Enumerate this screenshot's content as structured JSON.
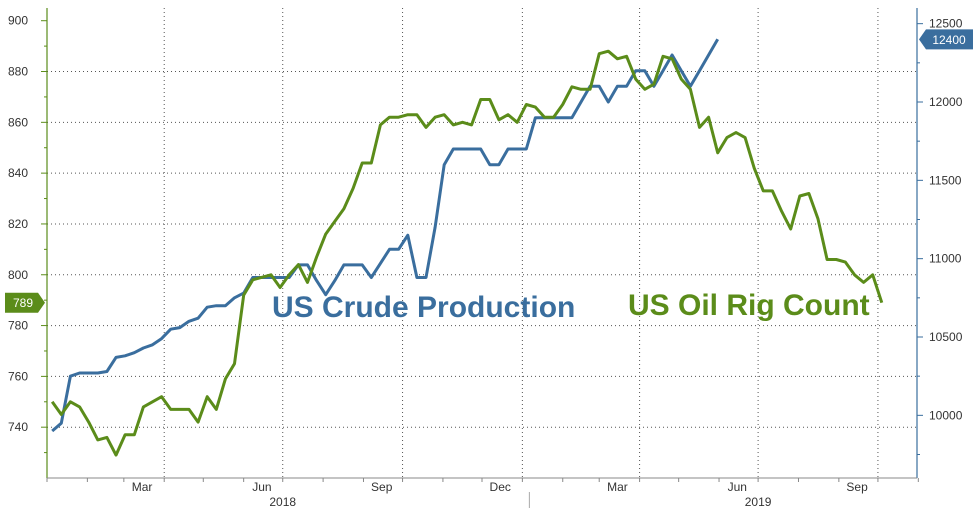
{
  "chart_data": {
    "type": "line",
    "x_axis": {
      "month_labels": [
        "Mar",
        "Jun",
        "Sep",
        "Dec",
        "Mar",
        "Jun",
        "Sep"
      ],
      "year_labels": [
        "2018",
        "2019"
      ],
      "range": [
        "2018-01-01",
        "2019-10-31"
      ]
    },
    "left_axis": {
      "ylim": [
        720,
        905
      ],
      "ticks": [
        740,
        760,
        780,
        800,
        820,
        840,
        860,
        880,
        900
      ]
    },
    "right_axis": {
      "ylim": [
        9600,
        12600
      ],
      "ticks": [
        10000,
        10500,
        11000,
        11500,
        12000,
        12500
      ]
    },
    "grid": "dotted",
    "series": [
      {
        "name": "US Crude Production",
        "axis": "right",
        "color": "#3a6e9e",
        "end_label": "12400",
        "points": [
          [
            "2018-01-05",
            9900
          ],
          [
            "2018-01-12",
            9950
          ],
          [
            "2018-01-19",
            10250
          ],
          [
            "2018-01-26",
            10270
          ],
          [
            "2018-02-02",
            10270
          ],
          [
            "2018-02-09",
            10270
          ],
          [
            "2018-02-16",
            10280
          ],
          [
            "2018-02-23",
            10370
          ],
          [
            "2018-03-02",
            10380
          ],
          [
            "2018-03-09",
            10400
          ],
          [
            "2018-03-16",
            10430
          ],
          [
            "2018-03-23",
            10450
          ],
          [
            "2018-03-30",
            10490
          ],
          [
            "2018-04-06",
            10550
          ],
          [
            "2018-04-13",
            10560
          ],
          [
            "2018-04-20",
            10600
          ],
          [
            "2018-04-27",
            10620
          ],
          [
            "2018-05-04",
            10690
          ],
          [
            "2018-05-11",
            10700
          ],
          [
            "2018-05-18",
            10700
          ],
          [
            "2018-05-25",
            10750
          ],
          [
            "2018-06-01",
            10780
          ],
          [
            "2018-06-08",
            10880
          ],
          [
            "2018-06-15",
            10880
          ],
          [
            "2018-06-22",
            10880
          ],
          [
            "2018-06-29",
            10880
          ],
          [
            "2018-07-06",
            10880
          ],
          [
            "2018-07-13",
            10960
          ],
          [
            "2018-07-20",
            10960
          ],
          [
            "2018-07-27",
            10860
          ],
          [
            "2018-08-03",
            10770
          ],
          [
            "2018-08-10",
            10860
          ],
          [
            "2018-08-17",
            10960
          ],
          [
            "2018-08-24",
            10960
          ],
          [
            "2018-08-31",
            10960
          ],
          [
            "2018-09-07",
            10880
          ],
          [
            "2018-09-14",
            10970
          ],
          [
            "2018-09-21",
            11060
          ],
          [
            "2018-09-28",
            11060
          ],
          [
            "2018-10-05",
            11150
          ],
          [
            "2018-10-12",
            10880
          ],
          [
            "2018-10-19",
            10880
          ],
          [
            "2018-10-26",
            11200
          ],
          [
            "2018-11-02",
            11600
          ],
          [
            "2018-11-09",
            11700
          ],
          [
            "2018-11-16",
            11700
          ],
          [
            "2018-11-23",
            11700
          ],
          [
            "2018-11-30",
            11700
          ],
          [
            "2018-12-07",
            11600
          ],
          [
            "2018-12-14",
            11600
          ],
          [
            "2018-12-21",
            11700
          ],
          [
            "2018-12-28",
            11700
          ],
          [
            "2019-01-04",
            11700
          ],
          [
            "2019-01-11",
            11900
          ],
          [
            "2019-01-18",
            11900
          ],
          [
            "2019-01-25",
            11900
          ],
          [
            "2019-02-01",
            11900
          ],
          [
            "2019-02-08",
            11900
          ],
          [
            "2019-02-15",
            12000
          ],
          [
            "2019-02-22",
            12100
          ],
          [
            "2019-03-01",
            12100
          ],
          [
            "2019-03-08",
            12000
          ],
          [
            "2019-03-15",
            12100
          ],
          [
            "2019-03-22",
            12100
          ],
          [
            "2019-03-29",
            12200
          ],
          [
            "2019-04-05",
            12200
          ],
          [
            "2019-04-12",
            12100
          ],
          [
            "2019-04-19",
            12200
          ],
          [
            "2019-04-26",
            12300
          ],
          [
            "2019-05-03",
            12200
          ],
          [
            "2019-05-10",
            12100
          ],
          [
            "2019-05-17",
            12200
          ],
          [
            "2019-05-24",
            12300
          ],
          [
            "2019-05-31",
            12400
          ]
        ]
      },
      {
        "name": "US Oil Rig Count",
        "axis": "left",
        "color": "#5b8c1a",
        "end_label": "789",
        "points": [
          [
            "2018-01-05",
            750
          ],
          [
            "2018-01-12",
            745
          ],
          [
            "2018-01-19",
            750
          ],
          [
            "2018-01-26",
            748
          ],
          [
            "2018-02-02",
            742
          ],
          [
            "2018-02-09",
            735
          ],
          [
            "2018-02-16",
            736
          ],
          [
            "2018-02-23",
            729
          ],
          [
            "2018-03-02",
            737
          ],
          [
            "2018-03-09",
            737
          ],
          [
            "2018-03-16",
            748
          ],
          [
            "2018-03-23",
            750
          ],
          [
            "2018-03-30",
            752
          ],
          [
            "2018-04-06",
            747
          ],
          [
            "2018-04-13",
            747
          ],
          [
            "2018-04-20",
            747
          ],
          [
            "2018-04-27",
            742
          ],
          [
            "2018-05-04",
            752
          ],
          [
            "2018-05-11",
            747
          ],
          [
            "2018-05-18",
            759
          ],
          [
            "2018-05-25",
            765
          ],
          [
            "2018-06-01",
            792
          ],
          [
            "2018-06-08",
            798
          ],
          [
            "2018-06-15",
            799
          ],
          [
            "2018-06-22",
            800
          ],
          [
            "2018-06-29",
            795
          ],
          [
            "2018-07-06",
            800
          ],
          [
            "2018-07-13",
            804
          ],
          [
            "2018-07-20",
            797
          ],
          [
            "2018-07-27",
            807
          ],
          [
            "2018-08-03",
            816
          ],
          [
            "2018-08-10",
            821
          ],
          [
            "2018-08-17",
            826
          ],
          [
            "2018-08-24",
            834
          ],
          [
            "2018-08-31",
            844
          ],
          [
            "2018-09-07",
            844
          ],
          [
            "2018-09-14",
            859
          ],
          [
            "2018-09-21",
            862
          ],
          [
            "2018-09-28",
            862
          ],
          [
            "2018-10-05",
            863
          ],
          [
            "2018-10-12",
            863
          ],
          [
            "2018-10-19",
            858
          ],
          [
            "2018-10-26",
            862
          ],
          [
            "2018-11-02",
            863
          ],
          [
            "2018-11-09",
            859
          ],
          [
            "2018-11-16",
            860
          ],
          [
            "2018-11-23",
            859
          ],
          [
            "2018-11-30",
            869
          ],
          [
            "2018-12-07",
            869
          ],
          [
            "2018-12-14",
            861
          ],
          [
            "2018-12-21",
            863
          ],
          [
            "2018-12-28",
            860
          ],
          [
            "2019-01-04",
            867
          ],
          [
            "2019-01-11",
            866
          ],
          [
            "2019-01-18",
            862
          ],
          [
            "2019-01-25",
            862
          ],
          [
            "2019-02-01",
            867
          ],
          [
            "2019-02-08",
            874
          ],
          [
            "2019-02-15",
            873
          ],
          [
            "2019-02-22",
            873
          ],
          [
            "2019-03-01",
            887
          ],
          [
            "2019-03-08",
            888
          ],
          [
            "2019-03-15",
            885
          ],
          [
            "2019-03-22",
            886
          ],
          [
            "2019-03-29",
            877
          ],
          [
            "2019-04-05",
            873
          ],
          [
            "2019-04-12",
            875
          ],
          [
            "2019-04-19",
            886
          ],
          [
            "2019-04-26",
            885
          ],
          [
            "2019-05-03",
            877
          ],
          [
            "2019-05-10",
            873
          ],
          [
            "2019-05-17",
            858
          ],
          [
            "2019-05-24",
            862
          ],
          [
            "2019-05-31",
            848
          ],
          [
            "2019-06-07",
            854
          ],
          [
            "2019-06-14",
            856
          ],
          [
            "2019-06-21",
            854
          ],
          [
            "2019-06-28",
            842
          ],
          [
            "2019-07-05",
            833
          ],
          [
            "2019-07-12",
            833
          ],
          [
            "2019-07-19",
            825
          ],
          [
            "2019-07-26",
            818
          ],
          [
            "2019-08-02",
            831
          ],
          [
            "2019-08-09",
            832
          ],
          [
            "2019-08-16",
            822
          ],
          [
            "2019-08-23",
            806
          ],
          [
            "2019-08-30",
            806
          ],
          [
            "2019-09-06",
            805
          ],
          [
            "2019-09-13",
            800
          ],
          [
            "2019-09-20",
            797
          ],
          [
            "2019-09-27",
            800
          ],
          [
            "2019-10-04",
            789
          ]
        ]
      }
    ],
    "annotations": [
      {
        "text": "US Crude Production",
        "color": "#3a6e9e"
      },
      {
        "text": "US Oil Rig Count",
        "color": "#5b8c1a"
      }
    ]
  }
}
